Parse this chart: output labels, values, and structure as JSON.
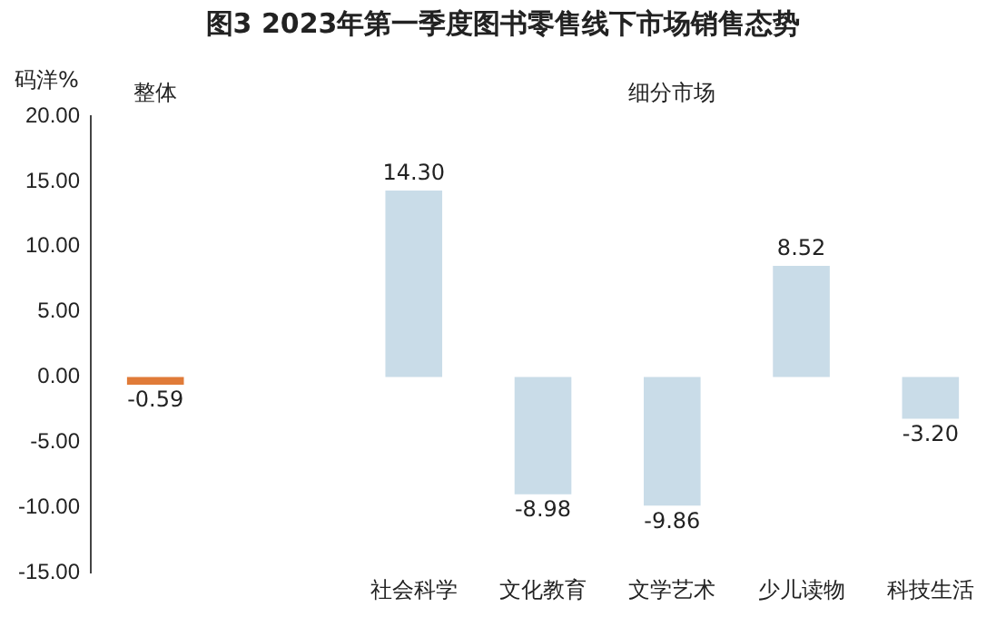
{
  "chart_data": {
    "type": "bar",
    "title": "图3  2023年第一季度图书零售线下市场销售态势",
    "ylabel": "码洋%",
    "categories": [
      null,
      null,
      "社会科学",
      "文化教育",
      "文学艺术",
      "少儿读物",
      "科技生活"
    ],
    "values": [
      -0.59,
      null,
      14.3,
      -8.98,
      -9.86,
      8.52,
      -3.2
    ],
    "colors": [
      "#e07b39",
      "#c9dce8",
      "#c9dce8",
      "#c9dce8",
      "#c9dce8",
      "#c9dce8",
      "#c9dce8"
    ],
    "value_labels": [
      "-0.59",
      null,
      "14.30",
      "-8.98",
      "-9.86",
      "8.52",
      "-3.20"
    ],
    "annotations": [
      "整体",
      "细分市场"
    ],
    "ylim": [
      -15,
      20
    ],
    "yticks": [
      {
        "value": 20,
        "label": "20.00"
      },
      {
        "value": 15,
        "label": "15.00"
      },
      {
        "value": 10,
        "label": "10.00"
      },
      {
        "value": 5,
        "label": "5.00"
      },
      {
        "value": 0,
        "label": "0.00"
      },
      {
        "value": -5,
        "label": "-5.00"
      },
      {
        "value": -10,
        "label": "-10.00"
      },
      {
        "value": -15,
        "label": "-15.00"
      }
    ],
    "grid": false,
    "legend": false
  }
}
